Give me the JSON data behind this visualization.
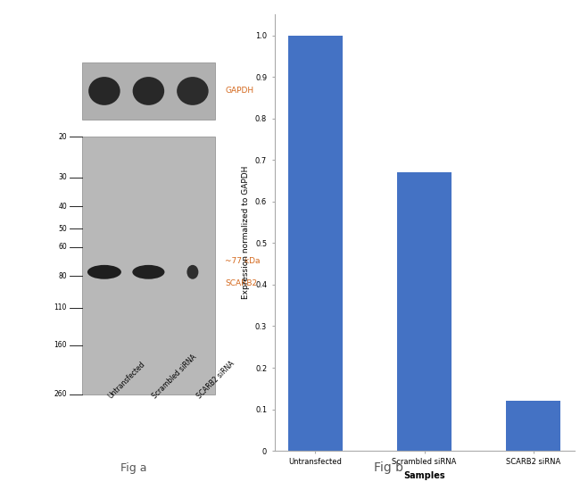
{
  "fig_width": 6.5,
  "fig_height": 5.49,
  "background_color": "#ffffff",
  "wb_panel": {
    "lane_labels": [
      "Untransfected",
      "Scrambled siRNA",
      "SCARB2 siRNA"
    ],
    "mw_markers": [
      260,
      160,
      110,
      80,
      60,
      50,
      40,
      30,
      20
    ],
    "main_band_lane_intensities": [
      0.82,
      0.78,
      0.28
    ],
    "gapdh_band_intensities": [
      0.7,
      0.65,
      0.52
    ],
    "scarb2_label": "SCARB2",
    "kda_label": "~77 kDa",
    "gapdh_label": "GAPDH",
    "fig_label": "Fig a",
    "gel_bg_color": "#b8b8b8",
    "gapdh_bg_color": "#b0b0b0",
    "annotation_color": "#d4691e",
    "fig_label_color": "#555555"
  },
  "bar_panel": {
    "categories": [
      "Untransfected",
      "Scrambled siRNA",
      "SCARB2 siRNA"
    ],
    "values": [
      1.0,
      0.67,
      0.12
    ],
    "bar_color": "#4472c4",
    "bar_width": 0.5,
    "ylabel": "Expression normalized to GAPDH",
    "xlabel": "Samples",
    "yticks": [
      0,
      0.1,
      0.2,
      0.3,
      0.4,
      0.5,
      0.6,
      0.7,
      0.8,
      0.9,
      1.0
    ],
    "ylim": [
      0,
      1.05
    ],
    "fig_label": "Fig b",
    "xlabel_fontsize": 7,
    "ylabel_fontsize": 6.5,
    "tick_fontsize": 6,
    "fig_label_color": "#555555",
    "fig_label_fontsize": 10,
    "axis_color": "#aaaaaa",
    "xlabel_bold": true
  }
}
